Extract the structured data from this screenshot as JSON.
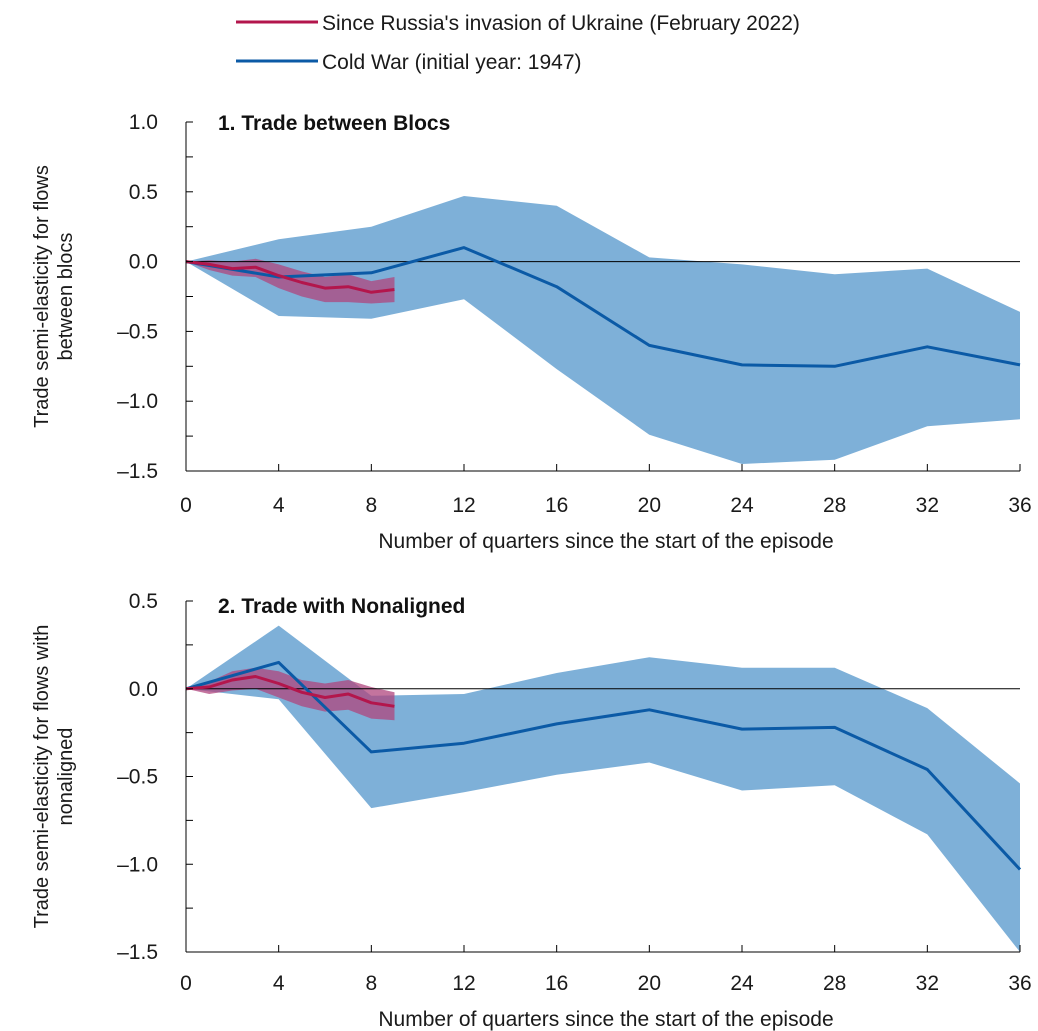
{
  "legend": [
    {
      "label": "Since Russia's invasion of Ukraine (February 2022)",
      "color": "#b3164c"
    },
    {
      "label": "Cold War (initial year: 1947)",
      "color": "#0b5aa6"
    }
  ],
  "colors": {
    "ci_cold_war": "#7eb0d8",
    "ci_russia": "#b0467e",
    "line_cold_war": "#0b5aa6",
    "line_russia": "#b3164c",
    "zero_line": "#000000"
  },
  "chart_data": [
    {
      "type": "line",
      "title": "1. Trade between Blocs",
      "xlabel": "Number of quarters since the start of the episode",
      "ylabel_lines": [
        "Trade semi-elasticity for flows",
        "between blocs"
      ],
      "xlim": [
        0,
        36
      ],
      "ylim": [
        -1.5,
        1.0
      ],
      "xticks": [
        0,
        4,
        8,
        12,
        16,
        20,
        24,
        28,
        32,
        36
      ],
      "yticks": [
        1.0,
        0.5,
        0.0,
        -0.5,
        -1.0,
        -1.5
      ],
      "ytick_labels": [
        "1.0",
        "0.5",
        "0.0",
        "–0.5",
        "–1.0",
        "–1.5"
      ],
      "series": [
        {
          "name": "Cold War (initial year: 1947)",
          "x": [
            0,
            4,
            8,
            12,
            16,
            20,
            24,
            28,
            32,
            36
          ],
          "y": [
            0,
            -0.11,
            -0.08,
            0.1,
            -0.18,
            -0.6,
            -0.74,
            -0.75,
            -0.61,
            -0.74
          ],
          "lower": [
            0,
            -0.39,
            -0.41,
            -0.27,
            -0.77,
            -1.24,
            -1.45,
            -1.42,
            -1.18,
            -1.13
          ],
          "upper": [
            0,
            0.16,
            0.25,
            0.47,
            0.4,
            0.03,
            -0.02,
            -0.09,
            -0.05,
            -0.36
          ]
        },
        {
          "name": "Since Russia's invasion of Ukraine (February 2022)",
          "x": [
            0,
            1,
            2,
            3,
            4,
            5,
            6,
            7,
            8,
            9
          ],
          "y": [
            0,
            -0.02,
            -0.05,
            -0.04,
            -0.1,
            -0.15,
            -0.19,
            -0.18,
            -0.22,
            -0.2
          ],
          "lower": [
            0,
            -0.06,
            -0.1,
            -0.11,
            -0.19,
            -0.25,
            -0.29,
            -0.29,
            -0.3,
            -0.29
          ],
          "upper": [
            0,
            0.01,
            0.0,
            0.02,
            -0.02,
            -0.07,
            -0.11,
            -0.09,
            -0.14,
            -0.11
          ]
        }
      ]
    },
    {
      "type": "line",
      "title": "2. Trade with Nonaligned",
      "xlabel": "Number of quarters since the start of the episode",
      "ylabel_lines": [
        "Trade semi-elasticity for flows with",
        "nonaligned"
      ],
      "xlim": [
        0,
        36
      ],
      "ylim": [
        -1.5,
        0.5
      ],
      "xticks": [
        0,
        4,
        8,
        12,
        16,
        20,
        24,
        28,
        32,
        36
      ],
      "yticks": [
        0.5,
        0.0,
        -0.5,
        -1.0,
        -1.5
      ],
      "ytick_labels": [
        "0.5",
        "0.0",
        "–0.5",
        "–1.0",
        "–1.5"
      ],
      "series": [
        {
          "name": "Cold War (initial year: 1947)",
          "x": [
            0,
            4,
            8,
            12,
            16,
            20,
            24,
            28,
            32,
            36
          ],
          "y": [
            0,
            0.15,
            -0.36,
            -0.31,
            -0.2,
            -0.12,
            -0.23,
            -0.22,
            -0.46,
            -1.03
          ],
          "lower": [
            0,
            -0.06,
            -0.68,
            -0.59,
            -0.49,
            -0.42,
            -0.58,
            -0.55,
            -0.83,
            -1.5
          ],
          "upper": [
            0,
            0.36,
            -0.04,
            -0.03,
            0.09,
            0.18,
            0.12,
            0.12,
            -0.11,
            -0.54
          ]
        },
        {
          "name": "Since Russia's invasion of Ukraine (February 2022)",
          "x": [
            0,
            1,
            2,
            3,
            4,
            5,
            6,
            7,
            8,
            9
          ],
          "y": [
            0,
            0.01,
            0.05,
            0.07,
            0.03,
            -0.02,
            -0.05,
            -0.03,
            -0.08,
            -0.1
          ],
          "lower": [
            0,
            -0.03,
            -0.01,
            0.0,
            -0.05,
            -0.1,
            -0.13,
            -0.12,
            -0.17,
            -0.18
          ],
          "upper": [
            0,
            0.04,
            0.1,
            0.12,
            0.1,
            0.05,
            0.03,
            0.05,
            0.01,
            -0.02
          ]
        }
      ]
    }
  ]
}
